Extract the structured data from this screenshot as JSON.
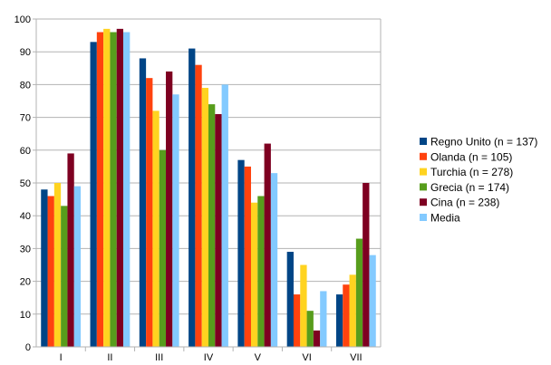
{
  "chart_data": {
    "type": "bar",
    "title": "",
    "xlabel": "",
    "ylabel": "",
    "ylim": [
      0,
      100
    ],
    "yticks": [
      0,
      10,
      20,
      30,
      40,
      50,
      60,
      70,
      80,
      90,
      100
    ],
    "grid": "horizontal",
    "legend_position": "right",
    "categories": [
      "I",
      "II",
      "III",
      "IV",
      "V",
      "VI",
      "VII"
    ],
    "series": [
      {
        "name": "Regno Unito (n = 137)",
        "color": "#004586",
        "values": [
          48,
          93,
          88,
          91,
          57,
          29,
          16
        ]
      },
      {
        "name": "Olanda (n = 105)",
        "color": "#ff420e",
        "values": [
          46,
          96,
          82,
          86,
          55,
          16,
          19
        ]
      },
      {
        "name": "Turchia (n = 278)",
        "color": "#ffd320",
        "values": [
          50,
          97,
          72,
          79,
          44,
          25,
          22
        ]
      },
      {
        "name": "Grecia (n = 174)",
        "color": "#579d1c",
        "values": [
          43,
          96,
          60,
          74,
          46,
          11,
          33
        ]
      },
      {
        "name": "Cina (n = 238)",
        "color": "#7e0021",
        "values": [
          59,
          97,
          84,
          71,
          62,
          5,
          50
        ]
      },
      {
        "name": "Media",
        "color": "#83caff",
        "values": [
          49,
          96,
          77,
          80,
          53,
          17,
          28
        ]
      }
    ]
  }
}
